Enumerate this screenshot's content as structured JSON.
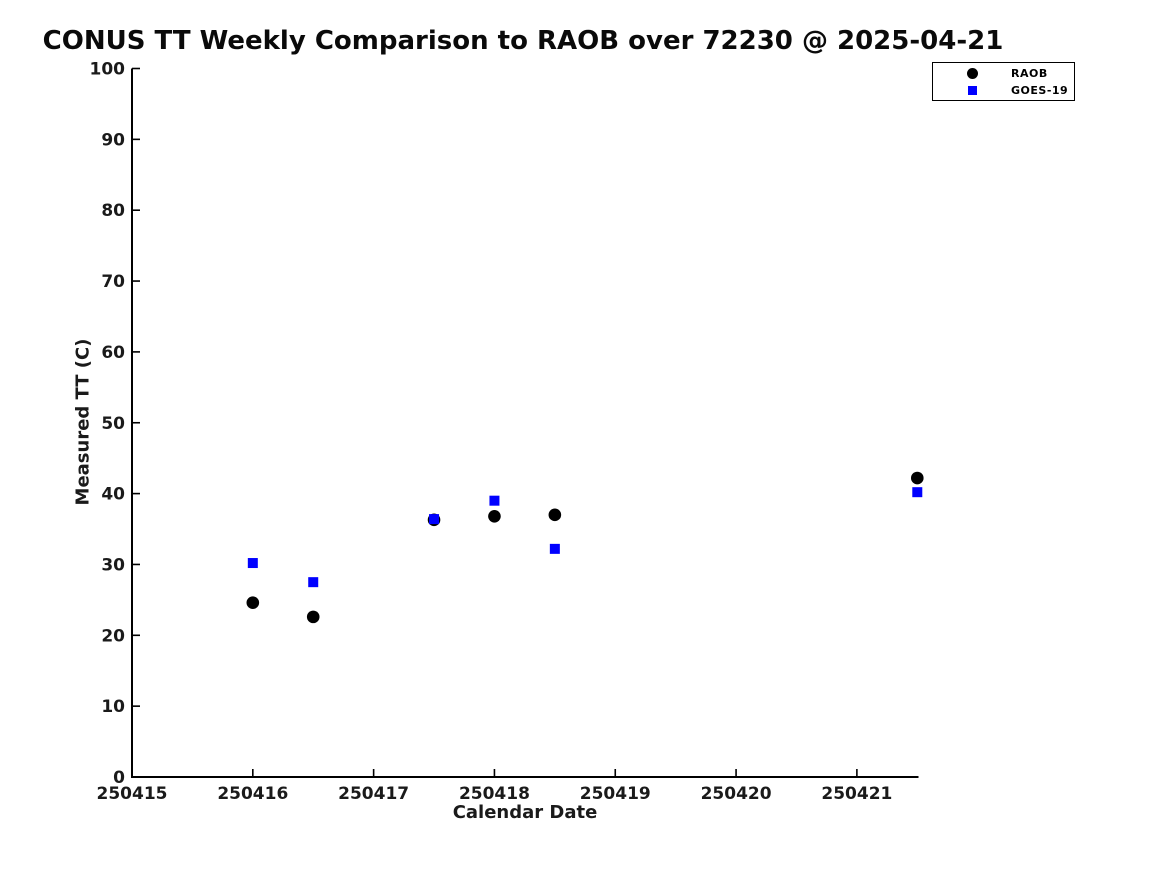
{
  "chart_data": {
    "type": "scatter",
    "title": "CONUS TT Weekly Comparison to RAOB over 72230 @ 2025-04-21",
    "xlabel": "Calendar Date",
    "ylabel": "Measured TT (C)",
    "xlim": [
      250415,
      250421.51
    ],
    "ylim": [
      0,
      100
    ],
    "xtick_values": [
      250415,
      250416,
      250417,
      250418,
      250419,
      250420,
      250421
    ],
    "xtick_labels": [
      "250415",
      "250416",
      "250417",
      "250418",
      "250419",
      "250420",
      "250421"
    ],
    "ytick_values": [
      0,
      10,
      20,
      30,
      40,
      50,
      60,
      70,
      80,
      90,
      100
    ],
    "ytick_labels": [
      "0",
      "10",
      "20",
      "30",
      "40",
      "50",
      "60",
      "70",
      "80",
      "90",
      "100"
    ],
    "grid": false,
    "legend_position": "top-right",
    "series": [
      {
        "name": "RAOB",
        "marker": "circle",
        "color": "#000000",
        "points": [
          [
            250416.0,
            24.6
          ],
          [
            250416.5,
            22.6
          ],
          [
            250417.5,
            36.3
          ],
          [
            250418.0,
            36.8
          ],
          [
            250418.5,
            37.0
          ],
          [
            250421.5,
            42.2
          ]
        ]
      },
      {
        "name": "GOES-19",
        "marker": "square",
        "color": "#0000ff",
        "points": [
          [
            250416.0,
            30.2
          ],
          [
            250416.5,
            27.5
          ],
          [
            250417.5,
            36.4
          ],
          [
            250418.0,
            39.0
          ],
          [
            250418.5,
            32.2
          ],
          [
            250421.5,
            40.2
          ]
        ]
      }
    ]
  }
}
